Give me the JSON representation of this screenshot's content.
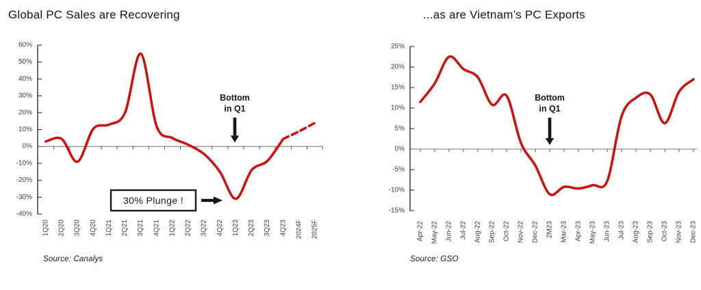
{
  "page": {
    "background": "#ffffff",
    "ink_color": "#151515"
  },
  "chart_data": [
    {
      "type": "line",
      "title": "Global PC Sales are Recovering",
      "source": "Source: Canalys",
      "xlabel": "",
      "ylabel": "",
      "ylim": [
        -40,
        60
      ],
      "grid": false,
      "legend": "none",
      "line_color": "#cc1212",
      "y_ticks": [
        "60%",
        "50%",
        "40%",
        "30%",
        "20%",
        "10%",
        "0%",
        "-10%",
        "-20%",
        "-30%",
        "-40%"
      ],
      "categories": [
        "1Q20",
        "2Q20",
        "3Q20",
        "4Q20",
        "1Q21",
        "2Q21",
        "3Q21",
        "4Q21",
        "1Q22",
        "2Q22",
        "3Q22",
        "4Q22",
        "1Q23",
        "2Q23",
        "3Q23",
        "4Q23",
        "2024F",
        "2025F"
      ],
      "series": [
        {
          "name": "actual",
          "style": "solid",
          "values": [
            3,
            4.5,
            -9,
            10.5,
            13,
            20,
            55,
            12,
            5,
            1,
            -4.5,
            -15,
            -31,
            -14,
            -8.5,
            4.5,
            null,
            null
          ]
        },
        {
          "name": "forecast",
          "style": "dashed",
          "values": [
            null,
            null,
            null,
            null,
            null,
            null,
            null,
            null,
            null,
            null,
            null,
            null,
            null,
            null,
            null,
            4.5,
            9,
            14
          ]
        }
      ],
      "annotations": [
        {
          "id": "bottom-in-q1",
          "lines": [
            "Bottom",
            "in Q1"
          ],
          "arrow": "down",
          "category": "1Q23"
        },
        {
          "id": "30-percent-plunge",
          "lines": [
            "30% Plunge !"
          ],
          "boxed": true,
          "arrow": "right",
          "category": "1Q23"
        }
      ]
    },
    {
      "type": "line",
      "title": "...as are Vietnam’s PC Exports",
      "source": "Source: GSO",
      "xlabel": "",
      "ylabel": "",
      "ylim": [
        -15,
        25
      ],
      "grid": false,
      "legend": "none",
      "line_color": "#cc1212",
      "y_ticks": [
        "25%",
        "20%",
        "15%",
        "10%",
        "5%",
        "0%",
        "-5%",
        "-10%",
        "-15%"
      ],
      "categories": [
        "Apr-22",
        "May-22",
        "Jun-22",
        "Jul-22",
        "Aug-22",
        "Sep-22",
        "Oct-22",
        "Nov-22",
        "Dec-22",
        "2M23",
        "Mar-23",
        "Apr-23",
        "May-23",
        "Jun-23",
        "Jul-23",
        "Aug-23",
        "Sep-23",
        "Oct-23",
        "Nov-23",
        "Dec-23"
      ],
      "series": [
        {
          "name": "actual",
          "style": "solid",
          "values": [
            11.5,
            16,
            22.5,
            19.5,
            17.5,
            10.8,
            13,
            1.5,
            -4,
            -11,
            -9.2,
            -9.6,
            -8.8,
            -7.8,
            8,
            12.5,
            13.3,
            6.3,
            14,
            17
          ]
        }
      ],
      "annotations": [
        {
          "id": "bottom-in-q1",
          "lines": [
            "Bottom",
            "in Q1"
          ],
          "arrow": "down",
          "category": "2M23"
        }
      ]
    }
  ]
}
